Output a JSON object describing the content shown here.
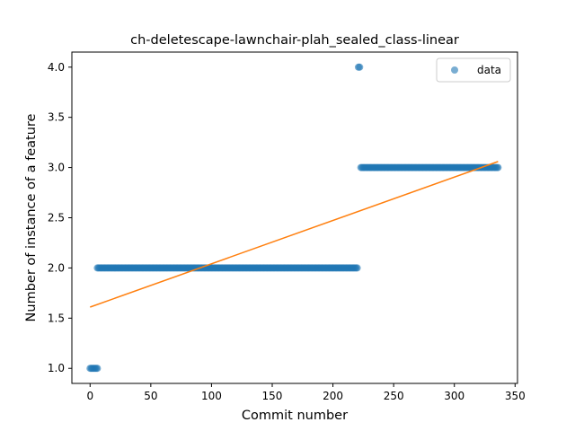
{
  "chart_data": {
    "type": "scatter",
    "title": "ch-deletescape-lawnchair-plah_sealed_class-linear",
    "xlabel": "Commit number",
    "ylabel": "Number of instance of a feature",
    "xlim": [
      -15,
      352
    ],
    "ylim": [
      0.85,
      4.15
    ],
    "xticks": [
      0,
      50,
      100,
      150,
      200,
      250,
      300,
      350
    ],
    "yticks": [
      1.0,
      1.5,
      2.0,
      2.5,
      3.0,
      3.5,
      4.0
    ],
    "xtick_labels": [
      "0",
      "50",
      "100",
      "150",
      "200",
      "250",
      "300",
      "350"
    ],
    "ytick_labels": [
      "1.0",
      "1.5",
      "2.0",
      "2.5",
      "3.0",
      "3.5",
      "4.0"
    ],
    "grid": false,
    "legend": {
      "entries": [
        "data"
      ],
      "placement": "top-right"
    },
    "colors": {
      "data": "#1f77b4",
      "fit": "#ff7f0e"
    },
    "series": [
      {
        "name": "data",
        "kind": "scatter",
        "segments": [
          {
            "x_from": 0,
            "x_to": 6,
            "y": 1
          },
          {
            "x_from": 6,
            "x_to": 220,
            "y": 2
          },
          {
            "x_from": 221,
            "x_to": 222,
            "y": 4
          },
          {
            "x_from": 223,
            "x_to": 336,
            "y": 3
          }
        ]
      },
      {
        "kind": "line",
        "x": [
          0,
          336
        ],
        "y": [
          1.61,
          3.06
        ]
      }
    ]
  }
}
